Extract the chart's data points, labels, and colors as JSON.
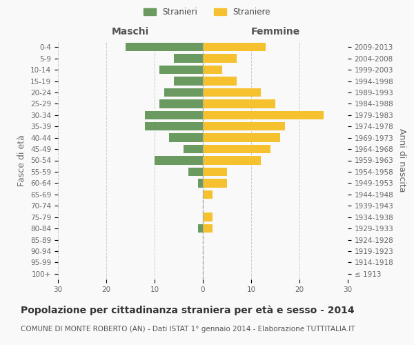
{
  "age_groups": [
    "100+",
    "95-99",
    "90-94",
    "85-89",
    "80-84",
    "75-79",
    "70-74",
    "65-69",
    "60-64",
    "55-59",
    "50-54",
    "45-49",
    "40-44",
    "35-39",
    "30-34",
    "25-29",
    "20-24",
    "15-19",
    "10-14",
    "5-9",
    "0-4"
  ],
  "birth_years": [
    "≤ 1913",
    "1914-1918",
    "1919-1923",
    "1924-1928",
    "1929-1933",
    "1934-1938",
    "1939-1943",
    "1944-1948",
    "1949-1953",
    "1954-1958",
    "1959-1963",
    "1964-1968",
    "1969-1973",
    "1974-1978",
    "1979-1983",
    "1984-1988",
    "1989-1993",
    "1994-1998",
    "1999-2003",
    "2004-2008",
    "2009-2013"
  ],
  "maschi": [
    0,
    0,
    0,
    0,
    1,
    0,
    0,
    0,
    1,
    3,
    10,
    4,
    7,
    12,
    12,
    9,
    8,
    6,
    9,
    6,
    16
  ],
  "femmine": [
    0,
    0,
    0,
    0,
    2,
    2,
    0,
    2,
    5,
    5,
    12,
    14,
    16,
    17,
    25,
    15,
    12,
    7,
    4,
    7,
    13
  ],
  "maschi_color": "#6a9a5f",
  "femmine_color": "#f5c12e",
  "title": "Popolazione per cittadinanza straniera per età e sesso - 2014",
  "subtitle": "COMUNE DI MONTE ROBERTO (AN) - Dati ISTAT 1° gennaio 2014 - Elaborazione TUTTITALIA.IT",
  "ylabel_left": "Fasce di età",
  "ylabel_right": "Anni di nascita",
  "xlabel_left": "Maschi",
  "xlabel_right": "Femmine",
  "legend_stranieri": "Stranieri",
  "legend_straniere": "Straniere",
  "xlim": 30,
  "bg_color": "#f9f9f9",
  "grid_color": "#cccccc",
  "bar_height": 0.75,
  "title_fontsize": 10,
  "subtitle_fontsize": 7.5,
  "tick_fontsize": 7.5,
  "label_fontsize": 9,
  "centerline_color": "#aaaaaa",
  "centerline_style": "--"
}
